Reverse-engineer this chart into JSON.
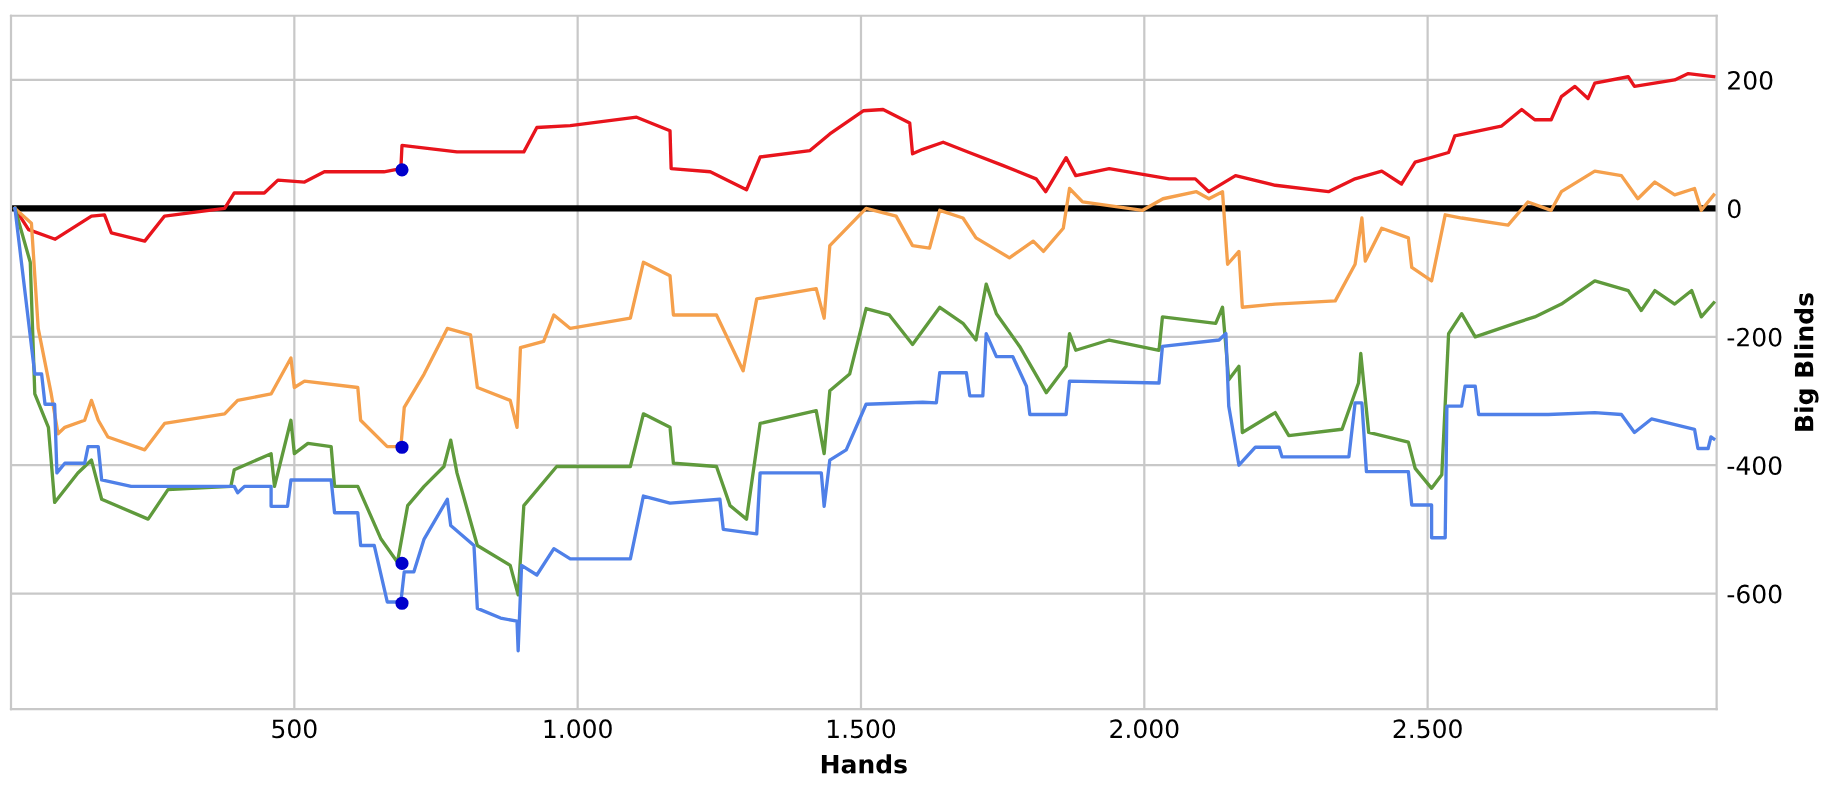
{
  "chart_data": {
    "type": "line",
    "xlabel": "Hands",
    "ylabel": "Big Blinds",
    "xlim": [
      0,
      3010
    ],
    "ylim": [
      -780,
      300
    ],
    "xticks": [
      {
        "value": 500,
        "label": "500"
      },
      {
        "value": 1000,
        "label": "1.000"
      },
      {
        "value": 1500,
        "label": "1.500"
      },
      {
        "value": 2000,
        "label": "2.000"
      },
      {
        "value": 2500,
        "label": "2.500"
      }
    ],
    "yticks": [
      -600,
      -400,
      -200,
      0,
      200
    ],
    "grid": true,
    "legend": false,
    "marker": "none",
    "line_style": "solid",
    "ref_lines": [
      {
        "axis": "y",
        "value": 0,
        "color": "#000000"
      }
    ],
    "series": [
      {
        "color": "#e8141c",
        "x": [
          7,
          31,
          78,
          142,
          165,
          177,
          236,
          271,
          377,
          394,
          447,
          471,
          518,
          553,
          658,
          688,
          690,
          787,
          905,
          928,
          987,
          1104,
          1163,
          1165,
          1234,
          1298,
          1322,
          1410,
          1445,
          1504,
          1539,
          1586,
          1591,
          1609,
          1645,
          1691,
          1750,
          1809,
          1826,
          1862,
          1879,
          1938,
          2044,
          2090,
          2114,
          2161,
          2231,
          2325,
          2372,
          2419,
          2454,
          2478,
          2537,
          2548,
          2630,
          2666,
          2689,
          2718,
          2736,
          2760,
          2783,
          2795,
          2854,
          2865,
          2936,
          2960,
          3005
        ],
        "values": [
          0,
          -33,
          -48,
          -12,
          -10,
          -38,
          -51,
          -12,
          0,
          24,
          24,
          44,
          41,
          57,
          57,
          62,
          98,
          88,
          88,
          126,
          129,
          142,
          121,
          62,
          57,
          29,
          80,
          90,
          116,
          152,
          154,
          133,
          85,
          92,
          103,
          87,
          67,
          46,
          26,
          79,
          51,
          62,
          46,
          46,
          26,
          51,
          36,
          26,
          46,
          58,
          38,
          72,
          87,
          113,
          128,
          154,
          138,
          138,
          174,
          190,
          171,
          195,
          205,
          190,
          200,
          210,
          205
        ]
      },
      {
        "color": "#f5a04c",
        "x": [
          7,
          36,
          48,
          71,
          83,
          95,
          130,
          142,
          154,
          171,
          236,
          271,
          377,
          400,
          459,
          494,
          500,
          518,
          612,
          617,
          664,
          688,
          694,
          729,
          770,
          811,
          823,
          881,
          893,
          899,
          940,
          958,
          987,
          1093,
          1116,
          1163,
          1169,
          1245,
          1292,
          1316,
          1421,
          1435,
          1445,
          1509,
          1562,
          1591,
          1621,
          1639,
          1680,
          1703,
          1762,
          1804,
          1822,
          1857,
          1868,
          1891,
          1997,
          2033,
          2092,
          2114,
          2138,
          2147,
          2167,
          2173,
          2231,
          2337,
          2372,
          2384,
          2390,
          2419,
          2466,
          2472,
          2507,
          2531,
          2560,
          2642,
          2677,
          2718,
          2736,
          2795,
          2842,
          2871,
          2901,
          2936,
          2971,
          2983,
          3005
        ],
        "values": [
          0,
          -23,
          -187,
          -289,
          -351,
          -341,
          -330,
          -299,
          -330,
          -356,
          -376,
          -335,
          -320,
          -299,
          -289,
          -233,
          -279,
          -269,
          -279,
          -330,
          -371,
          -371,
          -310,
          -258,
          -187,
          -197,
          -279,
          -299,
          -341,
          -217,
          -207,
          -166,
          -187,
          -171,
          -84,
          -105,
          -166,
          -166,
          -253,
          -141,
          -125,
          -171,
          -58,
          0,
          -12,
          -58,
          -62,
          -3,
          -15,
          -46,
          -77,
          -51,
          -67,
          -31,
          31,
          10,
          -3,
          15,
          26,
          15,
          26,
          -87,
          -67,
          -154,
          -149,
          -144,
          -87,
          -15,
          -82,
          -31,
          -46,
          -92,
          -113,
          -10,
          -15,
          -26,
          10,
          -3,
          26,
          58,
          51,
          15,
          41,
          21,
          31,
          -3,
          21
        ]
      },
      {
        "color": "#5f9a3c",
        "x": [
          7,
          34,
          42,
          66,
          77,
          118,
          142,
          160,
          242,
          277,
          388,
          394,
          459,
          465,
          494,
          500,
          524,
          565,
          571,
          612,
          653,
          682,
          700,
          729,
          764,
          776,
          787,
          823,
          881,
          895,
          905,
          963,
          1093,
          1116,
          1163,
          1169,
          1245,
          1269,
          1298,
          1322,
          1421,
          1435,
          1445,
          1480,
          1509,
          1550,
          1591,
          1639,
          1680,
          1703,
          1721,
          1739,
          1780,
          1827,
          1862,
          1868,
          1879,
          1938,
          2026,
          2032,
          2126,
          2138,
          2149,
          2167,
          2173,
          2231,
          2255,
          2349,
          2378,
          2382,
          2396,
          2466,
          2478,
          2507,
          2525,
          2537,
          2560,
          2584,
          2654,
          2689,
          2736,
          2795,
          2854,
          2877,
          2901,
          2936,
          2966,
          2983,
          3005
        ],
        "values": [
          0,
          -84,
          -289,
          -341,
          -458,
          -412,
          -392,
          -453,
          -484,
          -438,
          -433,
          -407,
          -382,
          -433,
          -330,
          -382,
          -366,
          -371,
          -433,
          -433,
          -515,
          -551,
          -463,
          -433,
          -402,
          -361,
          -412,
          -525,
          -556,
          -602,
          -463,
          -402,
          -402,
          -320,
          -341,
          -397,
          -402,
          -463,
          -484,
          -335,
          -315,
          -382,
          -284,
          -258,
          -156,
          -166,
          -212,
          -154,
          -179,
          -205,
          -118,
          -164,
          -215,
          -287,
          -246,
          -195,
          -221,
          -205,
          -221,
          -169,
          -179,
          -154,
          -267,
          -246,
          -349,
          -318,
          -354,
          -344,
          -272,
          -226,
          -349,
          -364,
          -405,
          -436,
          -415,
          -195,
          -164,
          -200,
          -179,
          -169,
          -149,
          -113,
          -128,
          -159,
          -128,
          -149,
          -128,
          -169,
          -147
        ]
      },
      {
        "color": "#4f80e8",
        "x": [
          7,
          42,
          54,
          60,
          77,
          81,
          95,
          130,
          136,
          154,
          160,
          212,
          394,
          400,
          412,
          459,
          459,
          488,
          494,
          565,
          571,
          612,
          617,
          641,
          664,
          688,
          694,
          711,
          729,
          770,
          776,
          817,
          823,
          864,
          893,
          895,
          901,
          928,
          958,
          987,
          1093,
          1116,
          1163,
          1251,
          1257,
          1316,
          1322,
          1430,
          1435,
          1445,
          1474,
          1509,
          1609,
          1633,
          1639,
          1686,
          1692,
          1715,
          1721,
          1739,
          1768,
          1792,
          1798,
          1862,
          1868,
          2026,
          2032,
          2132,
          2144,
          2149,
          2167,
          2196,
          2238,
          2243,
          2361,
          2372,
          2384,
          2392,
          2466,
          2472,
          2507,
          2507,
          2531,
          2534,
          2560,
          2566,
          2584,
          2590,
          2713,
          2795,
          2842,
          2865,
          2895,
          2971,
          2977,
          2995,
          3000,
          3005
        ],
        "values": [
          0,
          -258,
          -258,
          -305,
          -305,
          -412,
          -397,
          -397,
          -371,
          -371,
          -423,
          -433,
          -433,
          -443,
          -433,
          -433,
          -464,
          -464,
          -423,
          -423,
          -474,
          -474,
          -525,
          -525,
          -613,
          -613,
          -566,
          -566,
          -515,
          -453,
          -494,
          -525,
          -623,
          -638,
          -643,
          -689,
          -556,
          -571,
          -530,
          -546,
          -546,
          -448,
          -459,
          -453,
          -500,
          -507,
          -412,
          -412,
          -464,
          -392,
          -376,
          -305,
          -302,
          -303,
          -256,
          -256,
          -292,
          -292,
          -195,
          -231,
          -231,
          -277,
          -321,
          -321,
          -269,
          -272,
          -215,
          -205,
          -195,
          -308,
          -400,
          -372,
          -372,
          -387,
          -387,
          -303,
          -303,
          -410,
          -410,
          -462,
          -462,
          -513,
          -513,
          -308,
          -308,
          -277,
          -277,
          -321,
          -321,
          -318,
          -321,
          -349,
          -328,
          -344,
          -374,
          -374,
          -356,
          -359
        ]
      },
      {
        "type": "scatter",
        "color": "#0000cc",
        "marker": "circle",
        "x": [
          690,
          690,
          690,
          690
        ],
        "values": [
          60,
          -372,
          -553,
          -615
        ]
      }
    ]
  }
}
